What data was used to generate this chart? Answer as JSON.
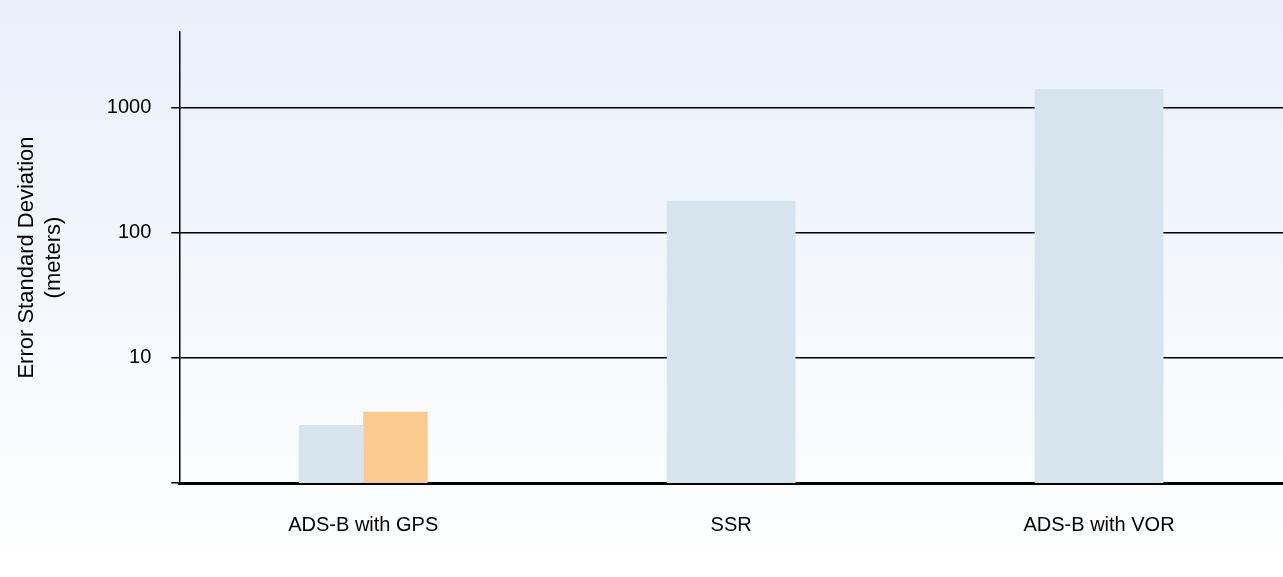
{
  "chart_data": {
    "type": "bar",
    "ylabel": "Error Standard Deviation\n(meters)",
    "categories": [
      "ADS-B with GPS",
      "SSR",
      "ADS-B with VOR"
    ],
    "series": [
      {
        "color": "#d6e4ee",
        "values": [
          2.9,
          180,
          1400
        ]
      },
      {
        "color": "#fcc98f",
        "values": [
          3.7,
          null,
          null
        ]
      }
    ],
    "log": true,
    "ylim": [
      1,
      4000
    ],
    "yticks": [
      {
        "value": 1,
        "label": null
      },
      10,
      100,
      1000
    ],
    "grid": "y",
    "legend": false
  }
}
